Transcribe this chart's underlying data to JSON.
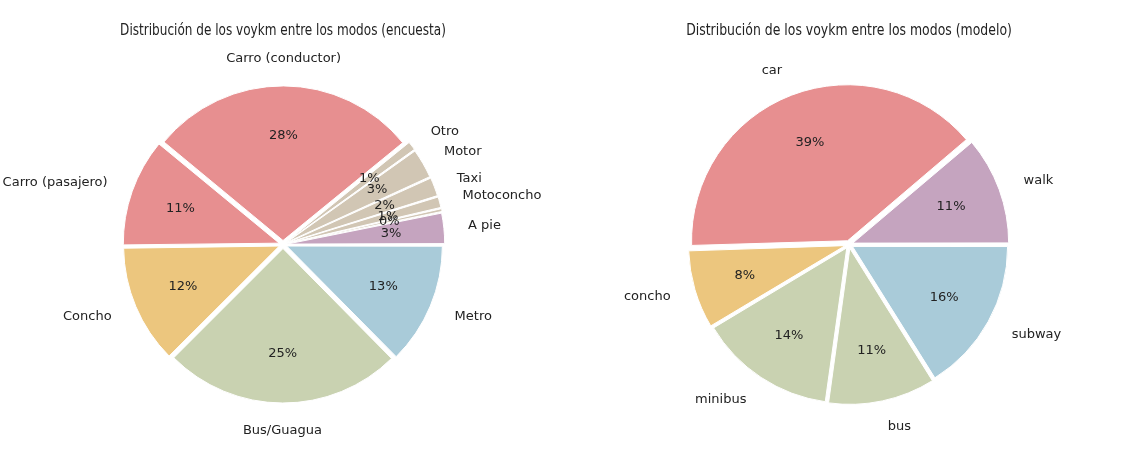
{
  "chart_data": [
    {
      "type": "pie",
      "title": "Distribución de los voykm entre los modos (encuesta)",
      "categories": [
        "A pie",
        null,
        "Motoconcho",
        "Taxi",
        "Motor",
        "Otro",
        "Carro (conductor)",
        "Carro (pasajero)",
        "Concho",
        "Bus/Guagua",
        "Metro"
      ],
      "values": [
        3.2,
        0.4,
        1.2,
        2.0,
        3.1,
        1.0,
        28.1,
        11.2,
        12.3,
        24.9,
        12.6
      ],
      "value_labels": [
        "3%",
        "0%",
        "1%",
        "2%",
        "3%",
        "1%",
        "28%",
        "11%",
        "12%",
        "25%",
        "13%"
      ],
      "colors": [
        "#c5a4bf",
        "#d1c6b4",
        "#d1c6b4",
        "#d1c6b4",
        "#d1c6b4",
        "#d1c6b4",
        "#e78f90",
        "#e78f90",
        "#ecc67e",
        "#c9d2b1",
        "#a9cbd9"
      ]
    },
    {
      "type": "pie",
      "title": "Distribución de los voykm entre los modos (modelo)",
      "categories": [
        "walk",
        "car",
        "concho",
        "minibus",
        "bus",
        "subway"
      ],
      "values": [
        11.2,
        39.3,
        8.1,
        14.2,
        11.1,
        16.1
      ],
      "value_labels": [
        "11%",
        "39%",
        "8%",
        "14%",
        "11%",
        "16%"
      ],
      "colors": [
        "#c5a4bf",
        "#e78f90",
        "#ecc67e",
        "#c9d2b1",
        "#c9d2b1",
        "#a9cbd9"
      ]
    }
  ]
}
